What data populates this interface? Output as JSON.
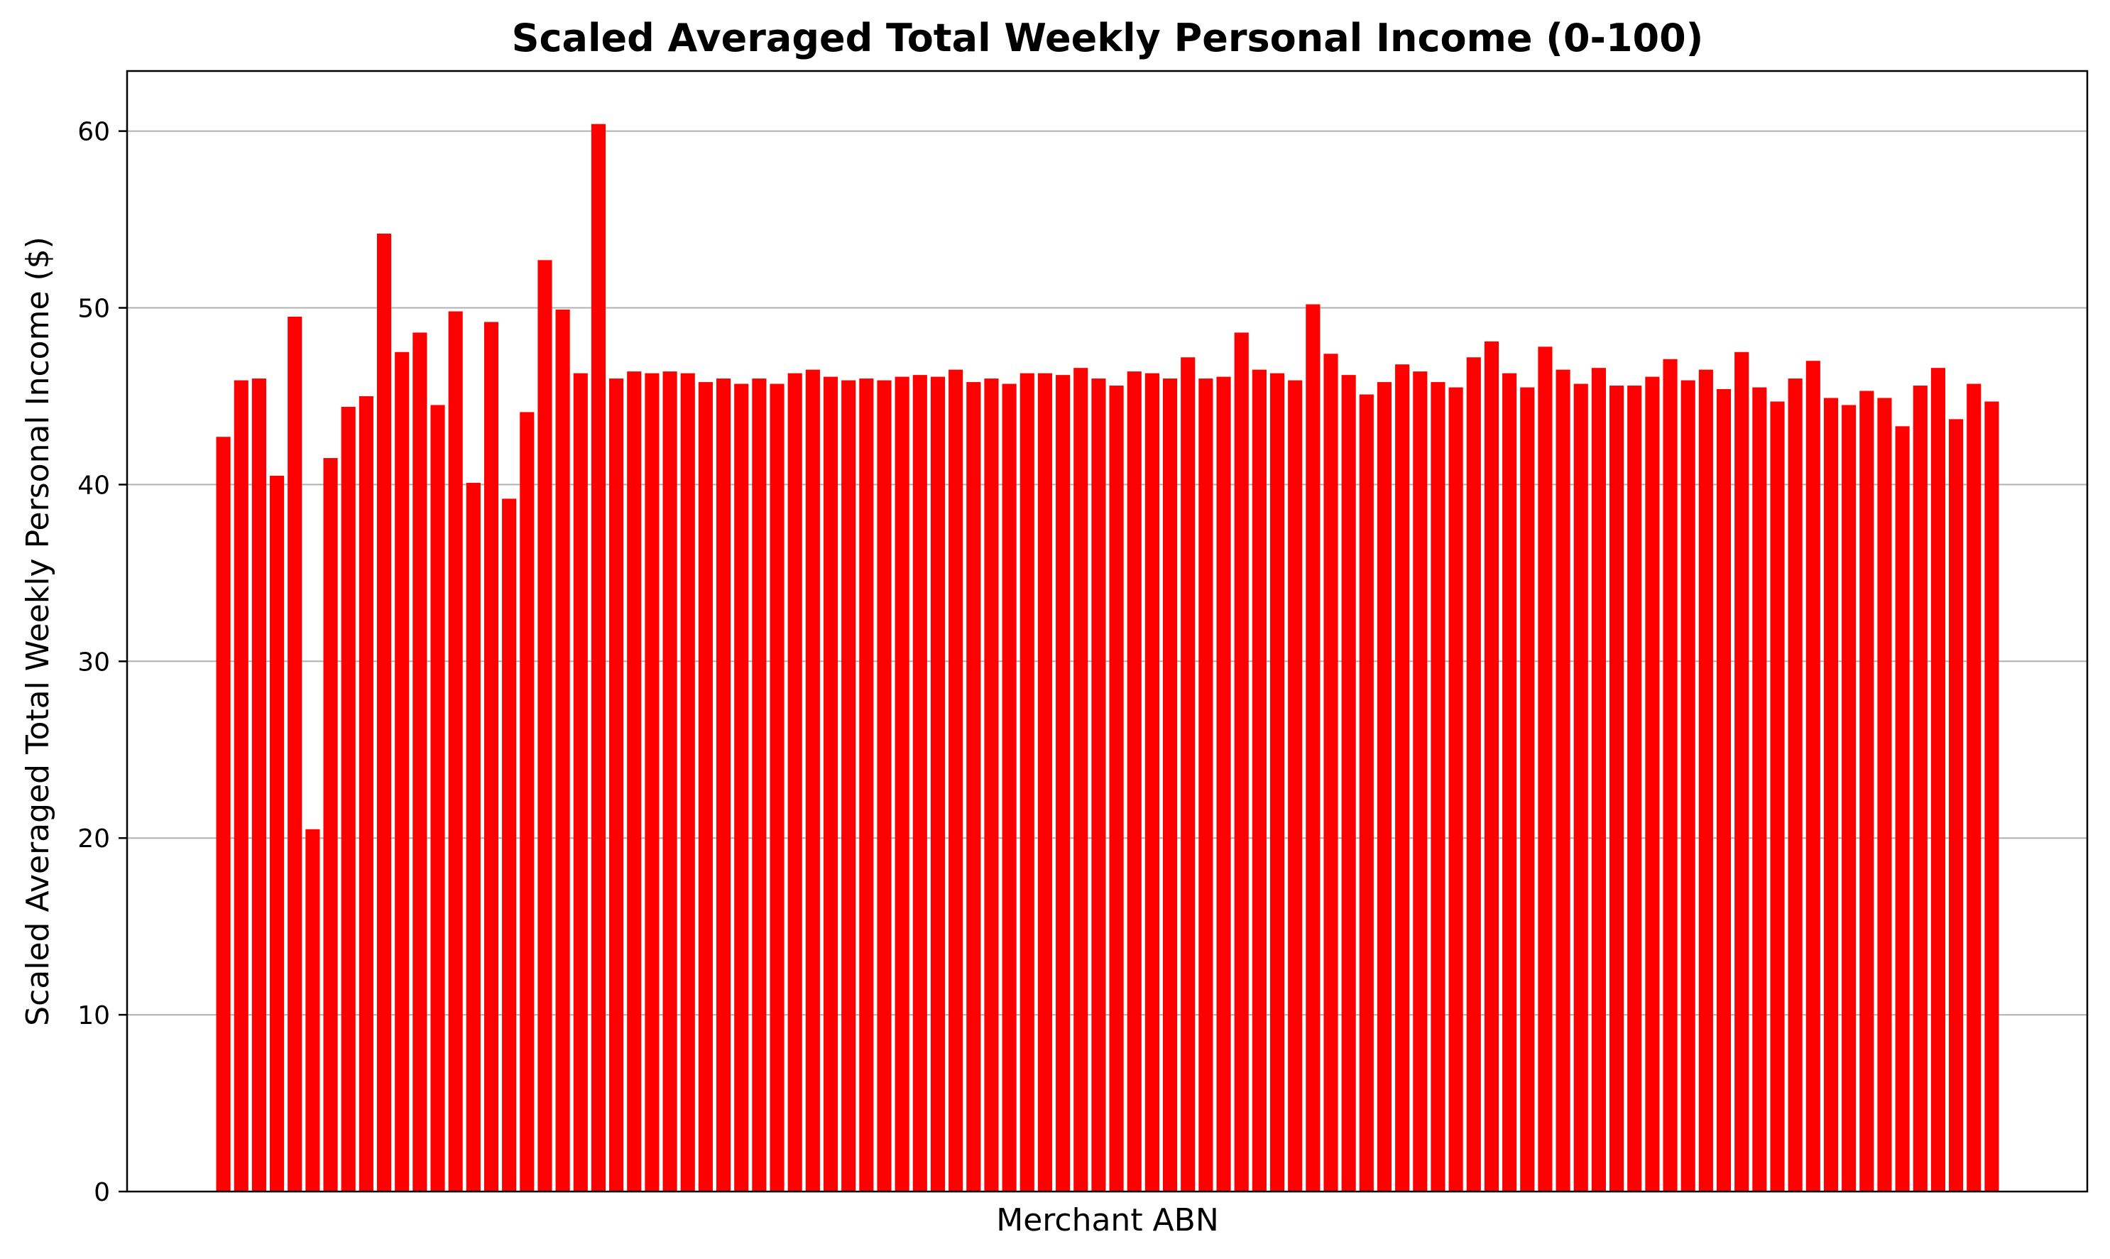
{
  "chart_data": {
    "type": "bar",
    "title": "Scaled Averaged Total Weekly Personal Income (0-100)",
    "xlabel": "Merchant ABN",
    "ylabel": "Scaled Averaged Total Weekly Personal Income ($)",
    "ylim": [
      0,
      63.4
    ],
    "yticks": [
      0,
      10,
      20,
      30,
      40,
      50,
      60
    ],
    "y_grid": true,
    "x_grid": false,
    "x_tick_labels_shown": false,
    "bar_color": "#ff0000",
    "values": [
      42.7,
      45.9,
      46.0,
      40.5,
      49.5,
      20.5,
      41.5,
      44.4,
      45.0,
      54.2,
      47.5,
      48.6,
      44.5,
      49.8,
      40.1,
      49.2,
      39.2,
      44.1,
      52.7,
      49.9,
      46.3,
      60.4,
      46.0,
      46.4,
      46.3,
      46.4,
      46.3,
      45.8,
      46.0,
      45.7,
      46.0,
      45.7,
      46.3,
      46.5,
      46.1,
      45.9,
      46.0,
      45.9,
      46.1,
      46.2,
      46.1,
      46.5,
      45.8,
      46.0,
      45.7,
      46.3,
      46.3,
      46.2,
      46.6,
      46.0,
      45.6,
      46.4,
      46.3,
      46.0,
      47.2,
      46.0,
      46.1,
      48.6,
      46.5,
      46.3,
      45.9,
      50.2,
      47.4,
      46.2,
      45.1,
      45.8,
      46.8,
      46.4,
      45.8,
      45.5,
      47.2,
      48.1,
      46.3,
      45.5,
      47.8,
      46.5,
      45.7,
      46.6,
      45.6,
      45.6,
      46.1,
      47.1,
      45.9,
      46.5,
      45.4,
      47.5,
      45.5,
      44.7,
      46.0,
      47.0,
      44.9,
      44.5,
      45.3,
      44.9,
      43.3,
      45.6,
      46.6,
      43.7,
      45.7,
      44.7
    ]
  }
}
